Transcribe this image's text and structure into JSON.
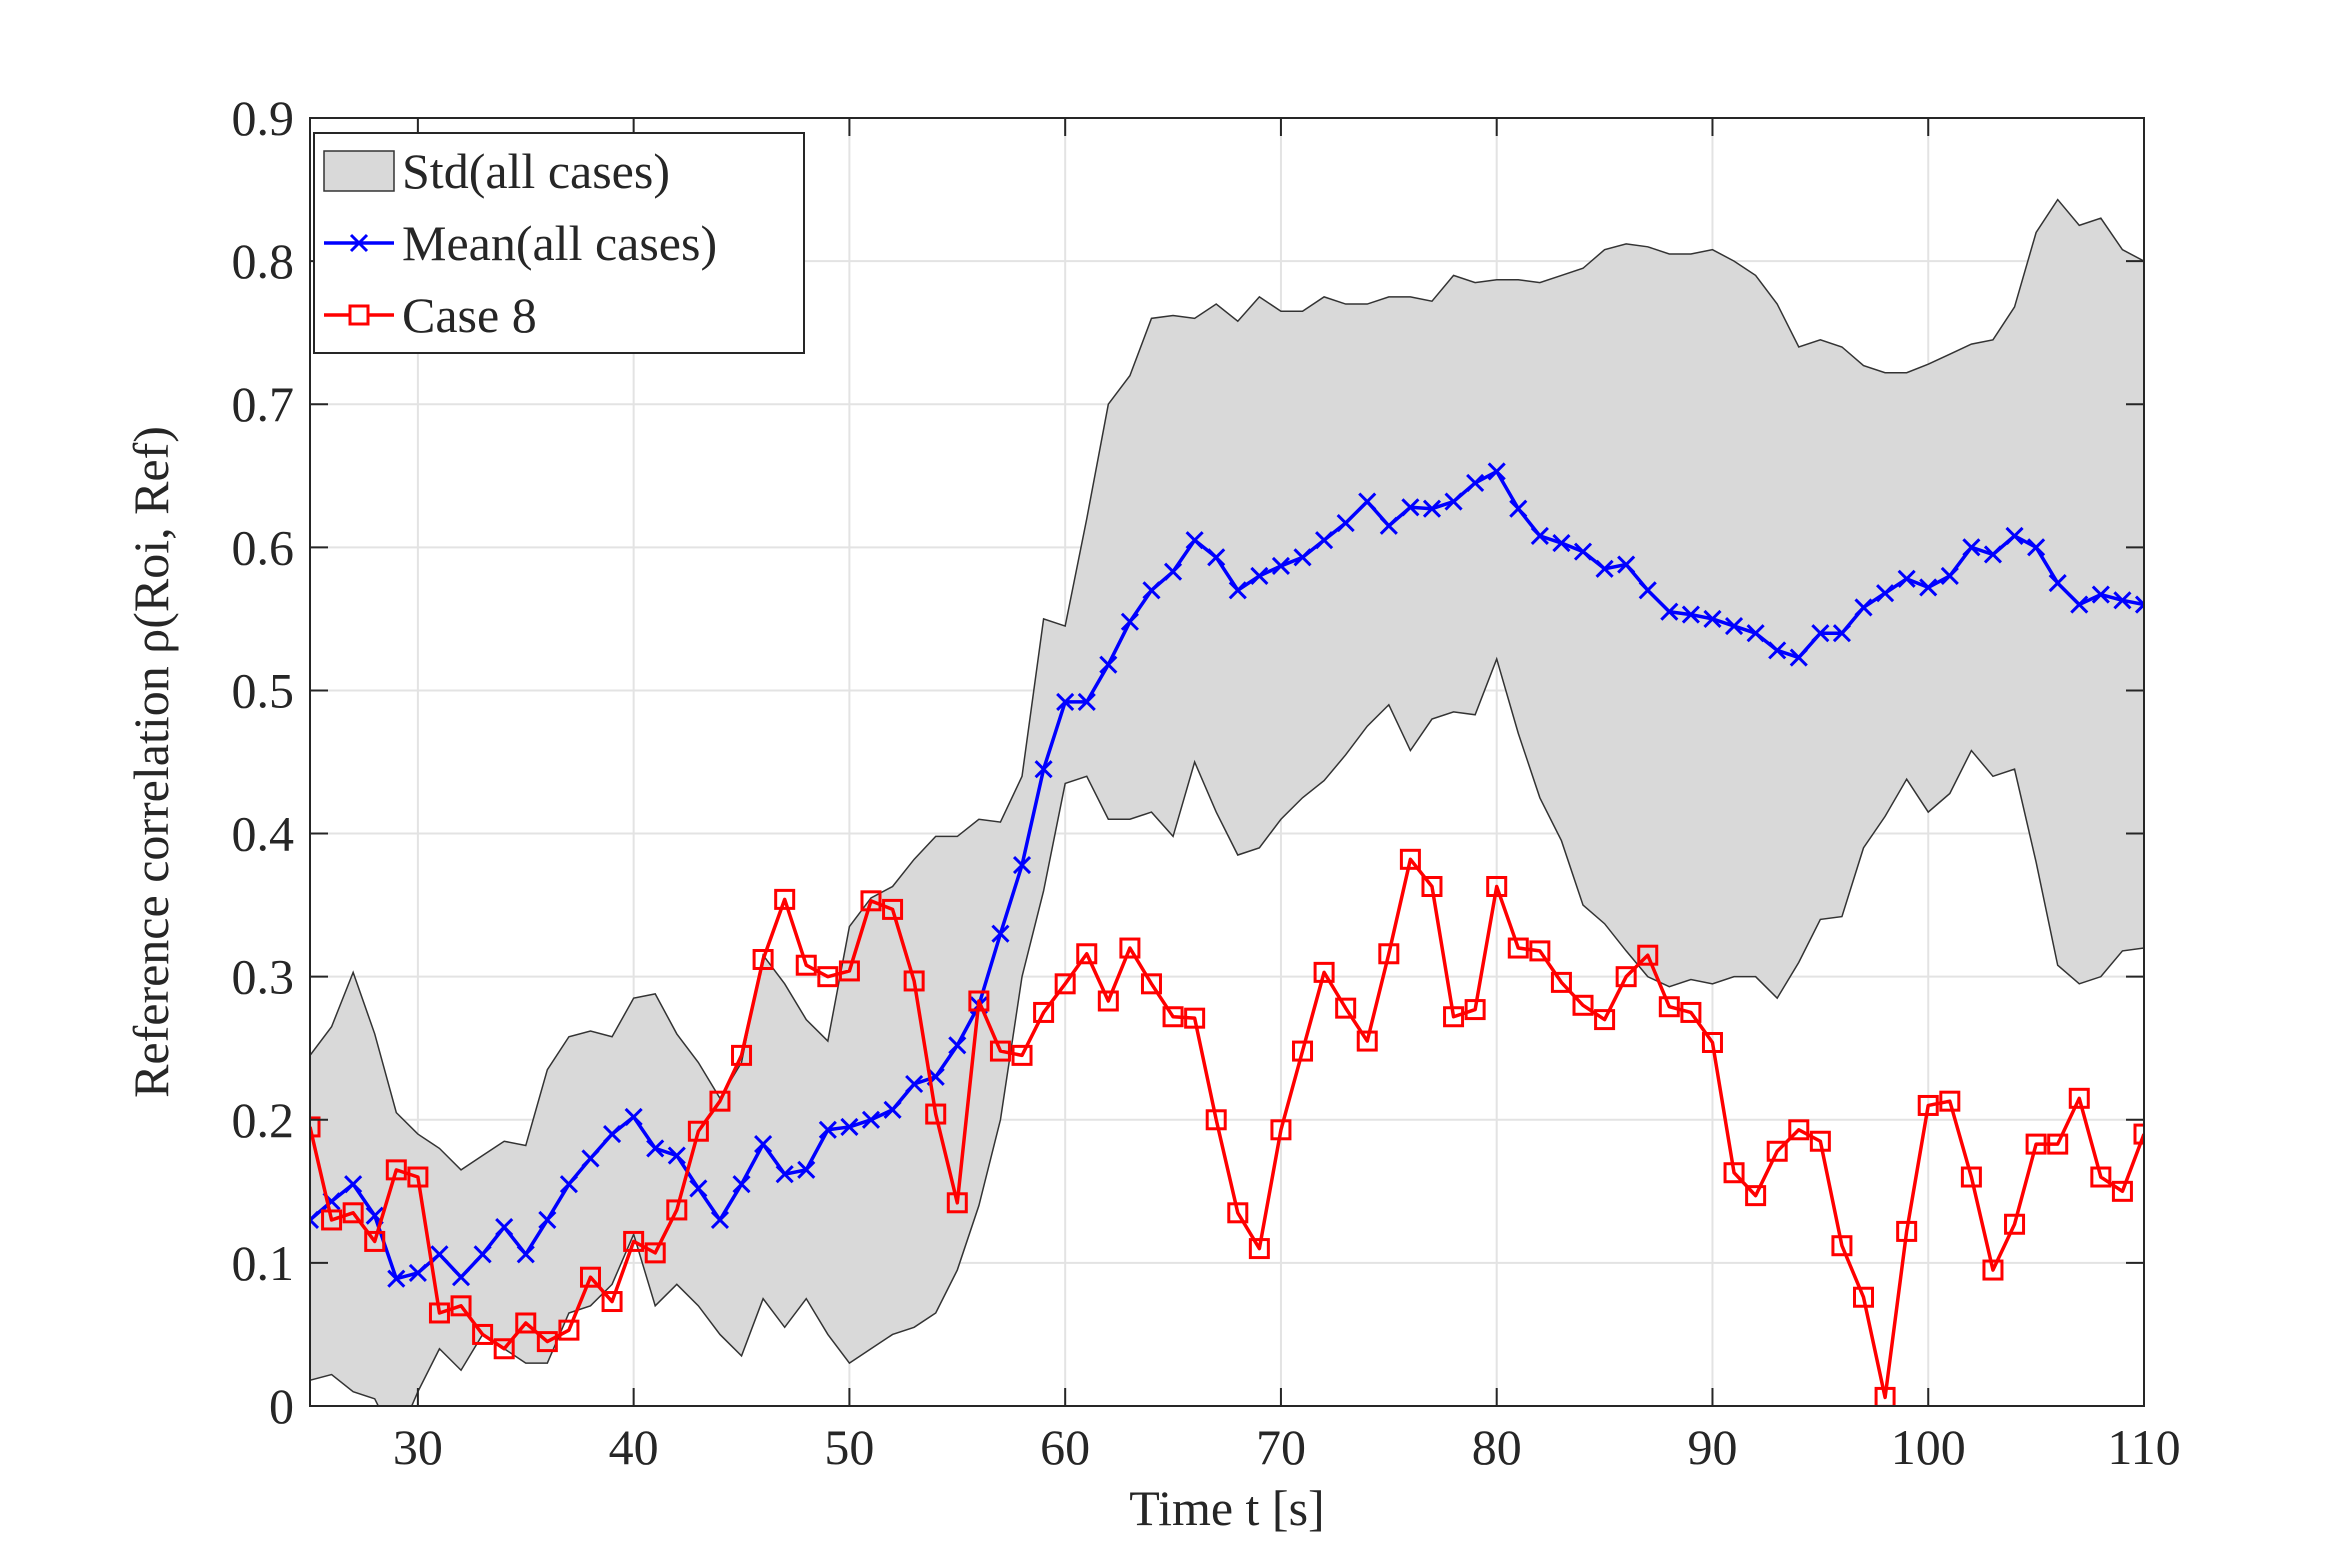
{
  "chart_data": {
    "type": "line",
    "xlabel": "Time t [s]",
    "ylabel": "Reference correlation ρ(Roi, Ref)",
    "xlim": [
      25,
      110
    ],
    "ylim": [
      0,
      0.9
    ],
    "xticks": [
      30,
      40,
      50,
      60,
      70,
      80,
      90,
      100,
      110
    ],
    "yticks": [
      0,
      0.1,
      0.2,
      0.3,
      0.4,
      0.5,
      0.6,
      0.7,
      0.8,
      0.9
    ],
    "grid": true,
    "legend": "upper left",
    "x": [
      25,
      26,
      27,
      28,
      29,
      30,
      31,
      32,
      33,
      34,
      35,
      36,
      37,
      38,
      39,
      40,
      41,
      42,
      43,
      44,
      45,
      46,
      47,
      48,
      49,
      50,
      51,
      52,
      53,
      54,
      55,
      56,
      57,
      58,
      59,
      60,
      61,
      62,
      63,
      64,
      65,
      66,
      67,
      68,
      69,
      70,
      71,
      72,
      73,
      74,
      75,
      76,
      77,
      78,
      79,
      80,
      81,
      82,
      83,
      84,
      85,
      86,
      87,
      88,
      89,
      90,
      91,
      92,
      93,
      94,
      95,
      96,
      97,
      98,
      99,
      100,
      101,
      102,
      103,
      104,
      105,
      106,
      107,
      108,
      109,
      110
    ],
    "series": [
      {
        "name": "Std(all cases)",
        "kind": "band",
        "color": "#d9d9d9",
        "upper": [
          0.245,
          0.265,
          0.303,
          0.26,
          0.205,
          0.19,
          0.18,
          0.165,
          0.175,
          0.185,
          0.182,
          0.235,
          0.258,
          0.262,
          0.258,
          0.285,
          0.288,
          0.26,
          0.24,
          0.215,
          0.24,
          0.315,
          0.295,
          0.27,
          0.255,
          0.335,
          0.355,
          0.363,
          0.382,
          0.398,
          0.398,
          0.41,
          0.408,
          0.44,
          0.55,
          0.545,
          0.62,
          0.7,
          0.72,
          0.76,
          0.762,
          0.76,
          0.77,
          0.758,
          0.775,
          0.765,
          0.765,
          0.775,
          0.77,
          0.77,
          0.775,
          0.775,
          0.772,
          0.79,
          0.785,
          0.787,
          0.787,
          0.785,
          0.79,
          0.795,
          0.808,
          0.812,
          0.81,
          0.805,
          0.805,
          0.808,
          0.8,
          0.79,
          0.77,
          0.74,
          0.745,
          0.74,
          0.727,
          0.722,
          0.722,
          0.728,
          0.735,
          0.742,
          0.745,
          0.768,
          0.82,
          0.843,
          0.825,
          0.83,
          0.808,
          0.8
        ],
        "lower": [
          0.018,
          0.022,
          0.01,
          0.005,
          -0.025,
          0.01,
          0.04,
          0.025,
          0.05,
          0.04,
          0.03,
          0.03,
          0.065,
          0.07,
          0.085,
          0.12,
          0.07,
          0.085,
          0.07,
          0.05,
          0.035,
          0.075,
          0.055,
          0.075,
          0.05,
          0.03,
          0.04,
          0.05,
          0.055,
          0.065,
          0.095,
          0.14,
          0.2,
          0.3,
          0.36,
          0.435,
          0.44,
          0.41,
          0.41,
          0.415,
          0.398,
          0.45,
          0.415,
          0.385,
          0.39,
          0.41,
          0.425,
          0.437,
          0.455,
          0.475,
          0.49,
          0.458,
          0.48,
          0.485,
          0.483,
          0.522,
          0.47,
          0.425,
          0.395,
          0.35,
          0.337,
          0.318,
          0.3,
          0.293,
          0.298,
          0.295,
          0.3,
          0.3,
          0.285,
          0.31,
          0.34,
          0.342,
          0.39,
          0.412,
          0.438,
          0.415,
          0.428,
          0.458,
          0.44,
          0.445,
          0.38,
          0.308,
          0.295,
          0.3,
          0.318,
          0.32
        ]
      },
      {
        "name": "Mean(all cases)",
        "kind": "line",
        "marker": "x",
        "color": "#0000ff",
        "values": [
          0.13,
          0.143,
          0.155,
          0.133,
          0.089,
          0.093,
          0.106,
          0.09,
          0.106,
          0.125,
          0.106,
          0.13,
          0.155,
          0.173,
          0.19,
          0.202,
          0.18,
          0.175,
          0.152,
          0.13,
          0.155,
          0.183,
          0.162,
          0.165,
          0.193,
          0.195,
          0.2,
          0.207,
          0.225,
          0.23,
          0.252,
          0.28,
          0.33,
          0.378,
          0.445,
          0.492,
          0.492,
          0.518,
          0.548,
          0.57,
          0.583,
          0.605,
          0.593,
          0.57,
          0.58,
          0.587,
          0.593,
          0.605,
          0.617,
          0.632,
          0.615,
          0.628,
          0.627,
          0.632,
          0.645,
          0.653,
          0.627,
          0.608,
          0.603,
          0.597,
          0.585,
          0.588,
          0.57,
          0.555,
          0.553,
          0.55,
          0.545,
          0.54,
          0.528,
          0.523,
          0.54,
          0.54,
          0.558,
          0.568,
          0.578,
          0.572,
          0.58,
          0.6,
          0.595,
          0.608,
          0.6,
          0.575,
          0.56,
          0.567,
          0.563,
          0.56
        ]
      },
      {
        "name": "Case 8",
        "kind": "line",
        "marker": "square",
        "color": "#ff0000",
        "values": [
          0.195,
          0.13,
          0.135,
          0.115,
          0.165,
          0.16,
          0.065,
          0.07,
          0.05,
          0.04,
          0.058,
          0.045,
          0.053,
          0.09,
          0.073,
          0.115,
          0.107,
          0.137,
          0.192,
          0.213,
          0.245,
          0.312,
          0.354,
          0.308,
          0.3,
          0.304,
          0.353,
          0.347,
          0.297,
          0.204,
          0.142,
          0.283,
          0.248,
          0.245,
          0.275,
          0.295,
          0.316,
          0.283,
          0.32,
          0.295,
          0.272,
          0.271,
          0.2,
          0.135,
          0.11,
          0.193,
          0.248,
          0.303,
          0.278,
          0.255,
          0.316,
          0.382,
          0.363,
          0.272,
          0.277,
          0.363,
          0.32,
          0.318,
          0.296,
          0.28,
          0.27,
          0.3,
          0.315,
          0.279,
          0.275,
          0.254,
          0.163,
          0.147,
          0.178,
          0.193,
          0.185,
          0.112,
          0.076,
          0.006,
          0.122,
          0.21,
          0.213,
          0.16,
          0.095,
          0.127,
          0.183,
          0.183,
          0.215,
          0.16,
          0.15,
          0.19
        ]
      }
    ]
  }
}
